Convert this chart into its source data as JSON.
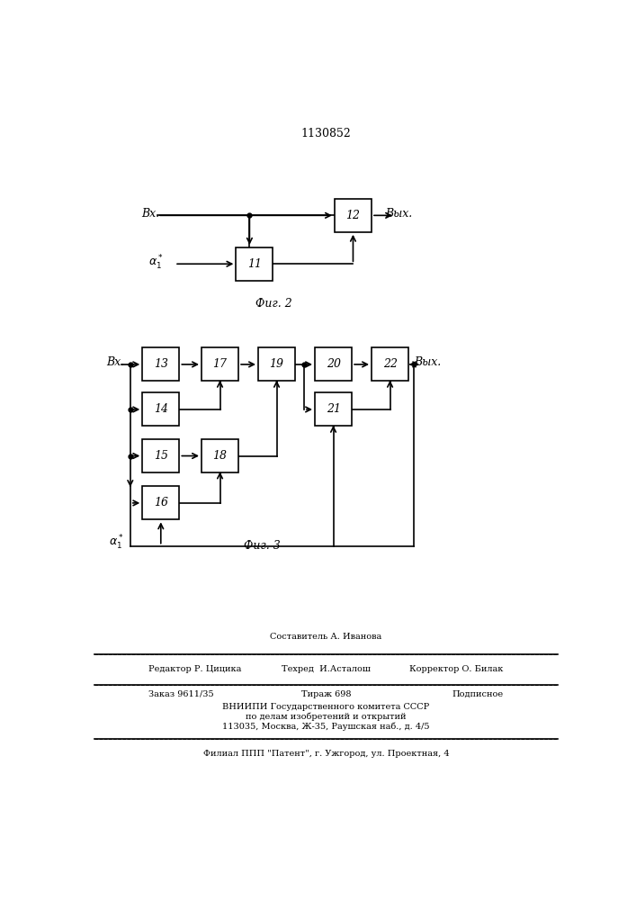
{
  "title": "1130852",
  "bg_color": "#ffffff",
  "fig2_label": "Фиг. 2",
  "fig3_label": "Фиг. 3",
  "lc": "#000000",
  "lw": 1.2,
  "bw": 0.075,
  "bh": 0.048
}
